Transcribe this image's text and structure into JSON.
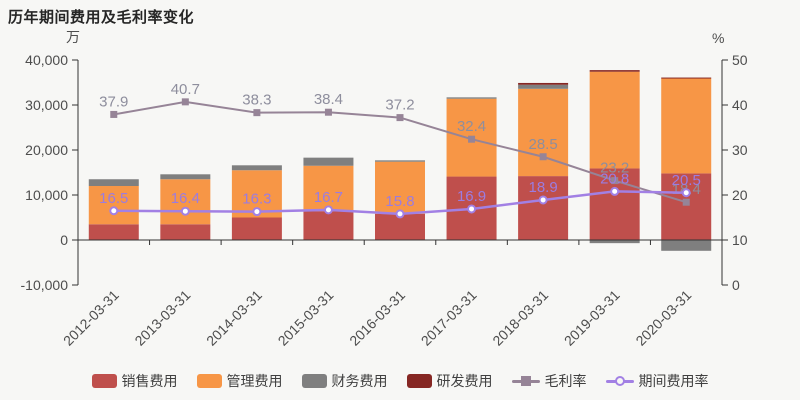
{
  "chart_data": {
    "type": "combo-stacked-bar-line",
    "title": "历年期间费用及毛利率变化",
    "categories": [
      "2012-03-31",
      "2013-03-31",
      "2014-03-31",
      "2015-03-31",
      "2016-03-31",
      "2017-03-31",
      "2018-03-31",
      "2019-03-31",
      "2020-03-31"
    ],
    "bar_series": [
      {
        "name": "销售费用",
        "color": "#bf4f4c",
        "values": [
          3500,
          3500,
          5000,
          6400,
          5800,
          14100,
          14200,
          15900,
          14800
        ]
      },
      {
        "name": "管理费用",
        "color": "#f79646",
        "values": [
          8500,
          10000,
          10500,
          10100,
          11600,
          17300,
          19400,
          21500,
          21100
        ]
      },
      {
        "name": "财务费用",
        "color": "#7f7f7f",
        "values": [
          1500,
          1100,
          1100,
          1800,
          300,
          300,
          900,
          -700,
          -2400
        ]
      },
      {
        "name": "研发费用",
        "color": "#862723",
        "values": [
          0,
          0,
          0,
          0,
          0,
          0,
          400,
          350,
          200
        ]
      }
    ],
    "line_series": [
      {
        "name": "毛利率",
        "color": "#968497",
        "marker": "square",
        "label_color": "#8e8e9d",
        "values": [
          37.9,
          40.7,
          38.3,
          38.4,
          37.2,
          32.4,
          28.5,
          23.2,
          18.4
        ]
      },
      {
        "name": "期间费用率",
        "color": "#a280e4",
        "marker": "circle-hollow",
        "label_color": "#9b7ce0",
        "values": [
          16.5,
          16.4,
          16.3,
          16.7,
          15.8,
          16.9,
          18.9,
          20.8,
          20.5
        ]
      }
    ],
    "left_axis": {
      "unit": "万",
      "min": -10000,
      "max": 40000,
      "tick_step": 10000,
      "tick_labels": [
        "-10,000",
        "0",
        "10,000",
        "20,000",
        "30,000",
        "40,000"
      ]
    },
    "right_axis": {
      "unit": "%",
      "min": 0,
      "max": 50,
      "tick_step": 10,
      "tick_labels": [
        "0",
        "10",
        "20",
        "30",
        "40",
        "50"
      ]
    },
    "legend_position": "bottom",
    "grid": false
  },
  "colors": {
    "background": "#f7f7f5",
    "axis_line": "#333333",
    "tick_text": "#4d4d4d",
    "title_text": "#262626",
    "legend_text": "#404040"
  }
}
